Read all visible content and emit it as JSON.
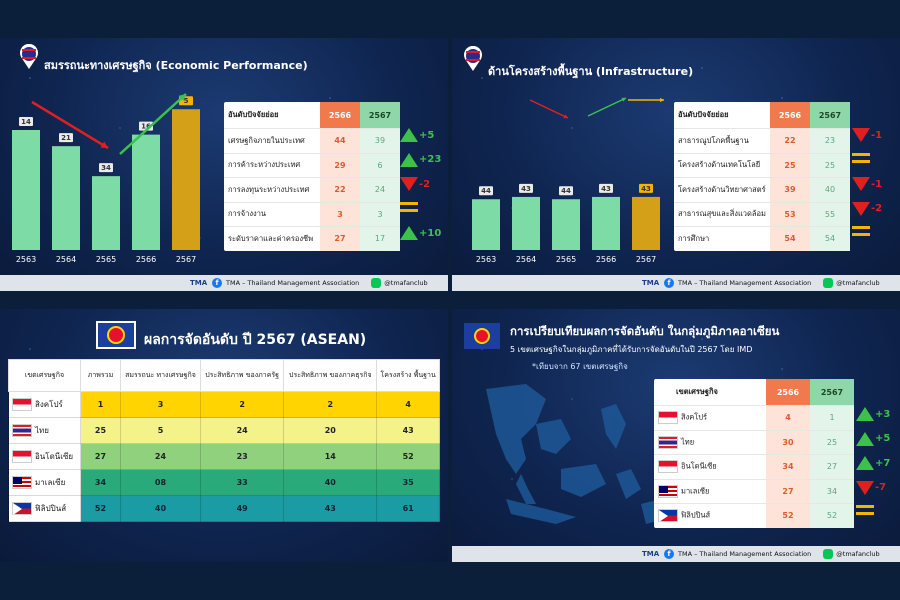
{
  "footer": {
    "org": "TMA – Thailand Management Association",
    "handle": "@tmafanclub",
    "logo": "TMA 60"
  },
  "economic": {
    "title": "สมรรถนะทางเศรษฐกิจ (Economic Performance)",
    "table_header": {
      "name": "อันดับปัจจัยย่อย",
      "a": "2566",
      "b": "2567"
    },
    "rows": [
      {
        "name": "เศรษฐกิจภายในประเทศ",
        "a": "44",
        "b": "39",
        "change": "+5",
        "dir": "up"
      },
      {
        "name": "การค้าระหว่างประเทศ",
        "a": "29",
        "b": "6",
        "change": "+23",
        "dir": "up"
      },
      {
        "name": "การลงทุนระหว่างประเทศ",
        "a": "22",
        "b": "24",
        "change": "-2",
        "dir": "down"
      },
      {
        "name": "การจ้างงาน",
        "a": "3",
        "b": "3",
        "change": "",
        "dir": "eq"
      },
      {
        "name": "ระดับราคาและค่าครองชีพ",
        "a": "27",
        "b": "17",
        "change": "+10",
        "dir": "up"
      }
    ]
  },
  "infrastructure": {
    "title": "ด้านโครงสร้างพื้นฐาน (Infrastructure)",
    "table_header": {
      "name": "อันดับปัจจัยย่อย",
      "a": "2566",
      "b": "2567"
    },
    "rows": [
      {
        "name": "สาธารณูปโภคพื้นฐาน",
        "a": "22",
        "b": "23",
        "change": "-1",
        "dir": "down"
      },
      {
        "name": "โครงสร้างด้านเทคโนโลยี",
        "a": "25",
        "b": "25",
        "change": "",
        "dir": "eq"
      },
      {
        "name": "โครงสร้างด้านวิทยาศาสตร์",
        "a": "39",
        "b": "40",
        "change": "-1",
        "dir": "down"
      },
      {
        "name": "สาธารณสุขและสิ่งแวดล้อม",
        "a": "53",
        "b": "55",
        "change": "-2",
        "dir": "down"
      },
      {
        "name": "การศึกษา",
        "a": "54",
        "b": "54",
        "change": "",
        "dir": "eq"
      }
    ]
  },
  "asean": {
    "title": "ผลการจัดอันดับ ปี 2567 (ASEAN)",
    "headers": [
      "เขตเศรษฐกิจ",
      "ภาพรวม",
      "สมรรถนะ ทางเศรษฐกิจ",
      "ประสิทธิภาพ ของภาครัฐ",
      "ประสิทธิภาพ ของภาคธุรกิจ",
      "โครงสร้าง พื้นฐาน"
    ],
    "rows": [
      {
        "country": "สิงคโปร์",
        "flag": "sg",
        "vals": [
          "1",
          "3",
          "2",
          "2",
          "4"
        ]
      },
      {
        "country": "ไทย",
        "flag": "th",
        "vals": [
          "25",
          "5",
          "24",
          "20",
          "43"
        ]
      },
      {
        "country": "อินโดนีเซีย",
        "flag": "id",
        "vals": [
          "27",
          "24",
          "23",
          "14",
          "52"
        ]
      },
      {
        "country": "มาเลเซีย",
        "flag": "my",
        "vals": [
          "34",
          "08",
          "33",
          "40",
          "35"
        ]
      },
      {
        "country": "ฟิลิปปินส์",
        "flag": "ph",
        "vals": [
          "52",
          "40",
          "49",
          "43",
          "61"
        ]
      }
    ]
  },
  "comparison": {
    "title": "การเปรียบเทียบผลการจัดอันดับ ในกลุ่มภูมิภาคอาเซียน",
    "subtitle": "5 เขตเศรษฐกิจในกลุ่มภูมิภาคที่ได้รับการจัดอันดับในปี 2567 โดย IMD",
    "note": "*เทียบจาก 67 เขตเศรษฐกิจ",
    "table_header": {
      "name": "เขตเศรษฐกิจ",
      "a": "2566",
      "b": "2567"
    },
    "rows": [
      {
        "name": "สิงคโปร์",
        "flag": "sg",
        "a": "4",
        "b": "1",
        "change": "+3",
        "dir": "up"
      },
      {
        "name": "ไทย",
        "flag": "th",
        "a": "30",
        "b": "25",
        "change": "+5",
        "dir": "up"
      },
      {
        "name": "อินโดนีเซีย",
        "flag": "id",
        "a": "34",
        "b": "27",
        "change": "+7",
        "dir": "up"
      },
      {
        "name": "มาเลเซีย",
        "flag": "my",
        "a": "27",
        "b": "34",
        "change": "-7",
        "dir": "down"
      },
      {
        "name": "ฟิลิปปินส์",
        "flag": "ph",
        "a": "52",
        "b": "52",
        "change": "",
        "dir": "eq"
      }
    ]
  },
  "chart_data": [
    {
      "type": "bar",
      "categories": [
        "2563",
        "2564",
        "2565",
        "2566",
        "2567"
      ],
      "values": [
        14,
        21,
        34,
        16,
        5
      ],
      "title": "",
      "xlabel": "",
      "ylabel": "",
      "colors": [
        "#7ddba6",
        "#7ddba6",
        "#7ddba6",
        "#7ddba6",
        "#d4a017"
      ],
      "ranking": true
    },
    {
      "type": "bar",
      "categories": [
        "2563",
        "2564",
        "2565",
        "2566",
        "2567"
      ],
      "values": [
        44,
        43,
        44,
        43,
        43
      ],
      "title": "",
      "xlabel": "",
      "ylabel": "",
      "colors": [
        "#7ddba6",
        "#7ddba6",
        "#7ddba6",
        "#7ddba6",
        "#d4a017"
      ],
      "ranking": true
    }
  ]
}
